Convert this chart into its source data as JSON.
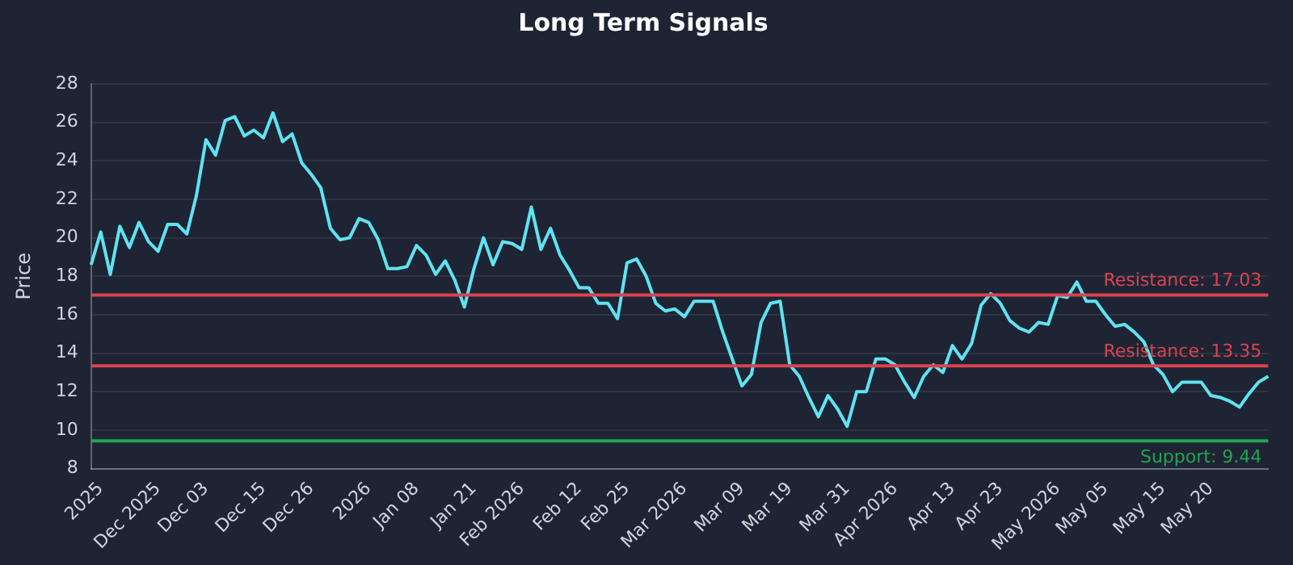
{
  "chart_data": {
    "type": "line",
    "title": "Long Term Signals",
    "ylabel": "Price",
    "categories": [
      null,
      "2025",
      null,
      null,
      null,
      null,
      null,
      "Dec 2025",
      null,
      null,
      null,
      null,
      "Dec 03",
      null,
      null,
      null,
      null,
      null,
      "Dec 15",
      null,
      null,
      null,
      null,
      "Dec 26",
      null,
      null,
      null,
      null,
      null,
      "2026",
      null,
      null,
      null,
      null,
      "Jan 08",
      null,
      null,
      null,
      null,
      null,
      "Jan 21",
      null,
      null,
      null,
      null,
      "Feb 2026",
      null,
      null,
      null,
      null,
      null,
      "Feb 12",
      null,
      null,
      null,
      null,
      "Feb 25",
      null,
      null,
      null,
      null,
      null,
      "Mar 2026",
      null,
      null,
      null,
      null,
      null,
      "Mar 09",
      null,
      null,
      null,
      null,
      "Mar 19",
      null,
      null,
      null,
      null,
      null,
      "Mar 31",
      null,
      null,
      null,
      null,
      "Apr 2026",
      null,
      null,
      null,
      null,
      null,
      "Apr 13",
      null,
      null,
      null,
      null,
      "Apr 23",
      null,
      null,
      null,
      null,
      null,
      "May 2026",
      null,
      null,
      null,
      null,
      "May 05",
      null,
      null,
      null,
      null,
      null,
      "May 15",
      null,
      null,
      null,
      null,
      "May 20",
      null,
      null,
      null,
      null,
      null,
      null
    ],
    "series": [
      {
        "color": "#5fe3f2",
        "values": [
          18.6,
          20.3,
          18.1,
          20.6,
          19.5,
          20.8,
          19.8,
          19.3,
          20.7,
          20.7,
          20.2,
          22.2,
          25.1,
          24.3,
          26.1,
          26.3,
          25.3,
          25.6,
          25.2,
          26.5,
          25.0,
          25.4,
          23.9,
          23.3,
          22.6,
          20.5,
          19.9,
          20.0,
          21.0,
          20.8,
          19.9,
          18.4,
          18.4,
          18.5,
          19.6,
          19.1,
          18.1,
          18.8,
          17.8,
          16.4,
          18.4,
          20.0,
          18.6,
          19.8,
          19.7,
          19.4,
          21.6,
          19.4,
          20.5,
          19.1,
          18.3,
          17.4,
          17.4,
          16.6,
          16.6,
          15.8,
          18.7,
          18.9,
          18.0,
          16.6,
          16.2,
          16.3,
          15.9,
          16.7,
          16.7,
          16.7,
          15.1,
          13.7,
          12.3,
          12.9,
          15.6,
          16.6,
          16.7,
          13.4,
          12.8,
          11.7,
          10.7,
          11.8,
          11.1,
          10.2,
          12.0,
          12.0,
          13.7,
          13.7,
          13.4,
          12.5,
          11.7,
          12.8,
          13.4,
          13.0,
          14.4,
          13.7,
          14.5,
          16.5,
          17.1,
          16.6,
          15.7,
          15.3,
          15.1,
          15.6,
          15.5,
          17.0,
          16.9,
          17.7,
          16.7,
          16.7,
          16.0,
          15.4,
          15.5,
          15.1,
          14.6,
          13.4,
          12.9,
          12.0,
          12.5,
          12.5,
          12.5,
          11.8,
          11.7,
          11.5,
          11.2,
          11.9,
          12.5,
          12.8
        ]
      }
    ],
    "ylim": [
      8,
      28
    ],
    "yticks": [
      8,
      10,
      12,
      14,
      16,
      18,
      20,
      22,
      24,
      26,
      28
    ],
    "grid": "y",
    "legend": false,
    "marker": "none",
    "line_style": "solid",
    "ref_lines": [
      {
        "axis": "y",
        "value": 17.03,
        "label": "Resistance: 17.03",
        "color": "#d9434f"
      },
      {
        "axis": "y",
        "value": 13.35,
        "label": "Resistance: 13.35",
        "color": "#d9434f"
      },
      {
        "axis": "y",
        "value": 9.44,
        "label": "Support: 9.44",
        "color": "#22a355"
      }
    ]
  }
}
